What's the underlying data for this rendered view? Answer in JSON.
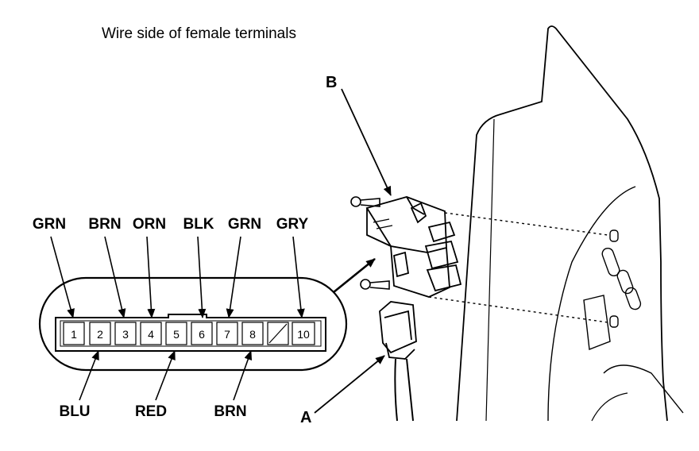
{
  "caption": "Wire side of female terminals",
  "top_wires": [
    "GRN",
    "BRN",
    "ORN",
    "BLK",
    "GRN",
    "GRY"
  ],
  "bottom_wires": [
    "BLU",
    "RED",
    "BRN"
  ],
  "terminals": [
    "1",
    "2",
    "3",
    "4",
    "5",
    "6",
    "7",
    "8",
    "",
    "10"
  ],
  "callouts": {
    "a": "A",
    "b": "B"
  }
}
